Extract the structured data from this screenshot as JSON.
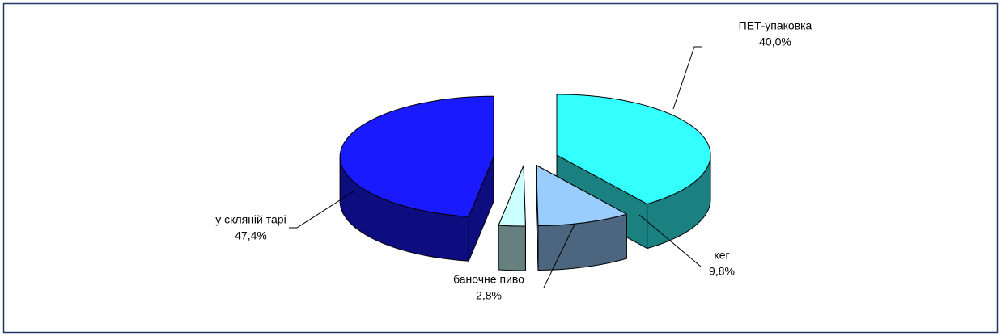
{
  "chart_data": {
    "type": "pie",
    "categories": [
      "ПЕТ-упаковка",
      "кег",
      "баночне пиво",
      "у скляній тарі"
    ],
    "values": [
      40.0,
      9.8,
      2.8,
      47.4
    ],
    "value_labels": [
      "40,0%",
      "9,8%",
      "2,8%",
      "47,4%"
    ],
    "colors": [
      "#33ffff",
      "#99ccff",
      "#ccffff",
      "#1a1aff"
    ]
  }
}
